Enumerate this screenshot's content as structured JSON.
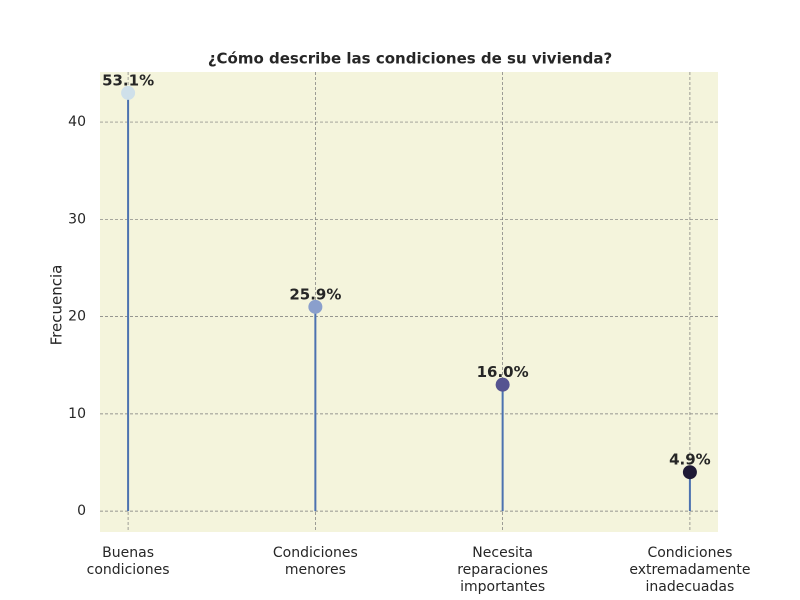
{
  "chart_data": {
    "type": "lollipop",
    "title": "¿Cómo describe las condiciones de su vivienda?",
    "ylabel": "Frecuencia",
    "categories": [
      "Buenas\ncondiciones",
      "Condiciones\nmenores",
      "Necesita\nreparaciones\nimportantes",
      "Condiciones\nextremadamente\ninadecuadas"
    ],
    "values": [
      43,
      21,
      13,
      4
    ],
    "value_labels": [
      "53.1%",
      "25.9%",
      "16.0%",
      "4.9%"
    ],
    "colors": [
      "#cfe0ea",
      "#8a9fcc",
      "#555491",
      "#1f1a35"
    ],
    "stem_color": "#4c72b0",
    "ylim": [
      -2.15,
      45.15
    ],
    "yticks": [
      0,
      10,
      20,
      30,
      40
    ],
    "grid": true
  }
}
